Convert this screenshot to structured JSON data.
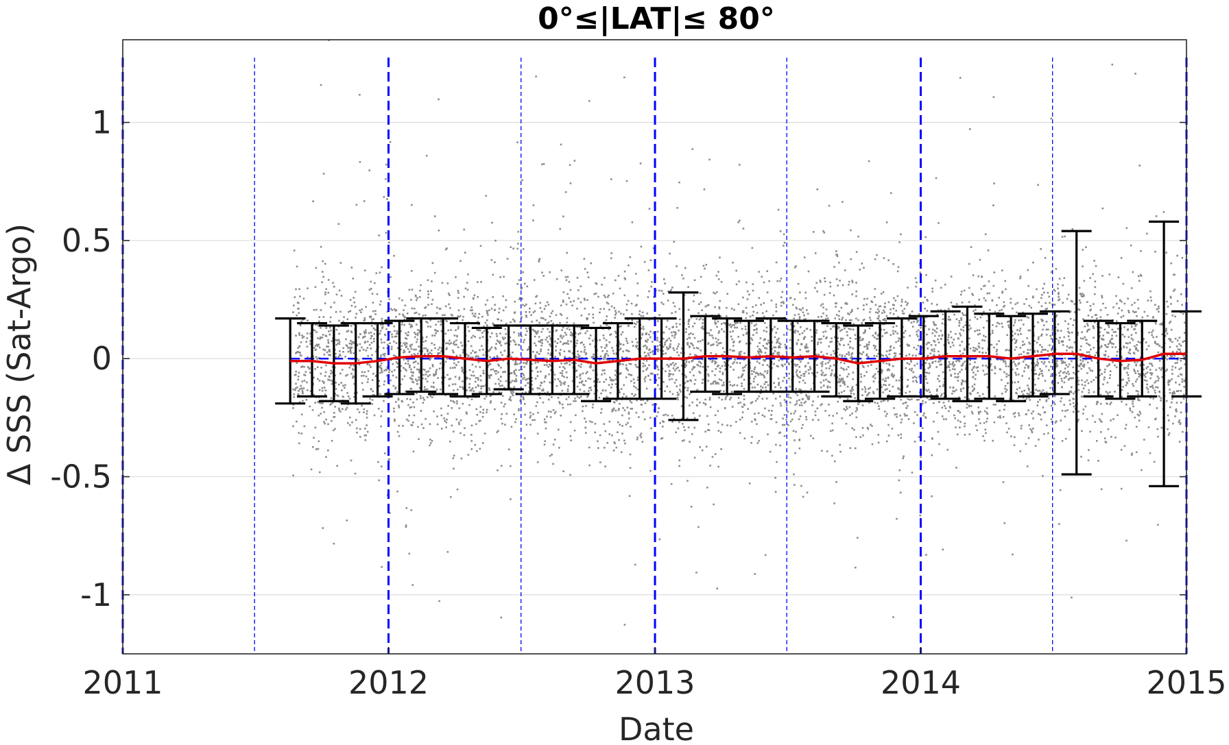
{
  "chart_data": {
    "type": "scatter",
    "title": "0°≤|LAT|≤ 80°",
    "xlabel": "Date",
    "ylabel": "Δ SSS (Sat-Argo)",
    "xlim": [
      "2011-01-01",
      "2015-01-01"
    ],
    "ylim": [
      -1.25,
      1.35
    ],
    "x_ticks": [
      "2011",
      "2012",
      "2013",
      "2014",
      "2015"
    ],
    "y_ticks": [
      {
        "value": -1,
        "label": "-1"
      },
      {
        "value": -0.5,
        "label": "-0.5"
      },
      {
        "value": 0,
        "label": "0"
      },
      {
        "value": 0.5,
        "label": "0.5"
      },
      {
        "value": 1,
        "label": "1"
      }
    ],
    "grid": "horizontal",
    "colors": {
      "scatter": "#8c8c8c",
      "mean_line": "#e00000",
      "error_bars": "#000000",
      "year_lines": "#0000ff",
      "zero_line": "#0000ff",
      "grid": "#dcdcdc"
    },
    "scatter_cloud": {
      "x_range": [
        "2011-08-23",
        "2015-01-01"
      ],
      "typical_spread": 0.17,
      "n_points_rendered": 6000
    },
    "year_markers": [
      "2011-01-01",
      "2012-01-01",
      "2013-01-01",
      "2014-01-01",
      "2015-01-01"
    ],
    "half_year_markers": [
      "2011-07-01",
      "2012-07-01",
      "2013-07-01",
      "2014-07-01"
    ],
    "mean_series": [
      {
        "date": "2011-08-19",
        "mean": -0.01,
        "low": -0.19,
        "high": 0.17
      },
      {
        "date": "2011-09-18",
        "mean": -0.01,
        "low": -0.16,
        "high": 0.15
      },
      {
        "date": "2011-10-18",
        "mean": -0.02,
        "low": -0.18,
        "high": 0.14
      },
      {
        "date": "2011-11-17",
        "mean": -0.02,
        "low": -0.19,
        "high": 0.15
      },
      {
        "date": "2011-12-17",
        "mean": -0.01,
        "low": -0.16,
        "high": 0.15
      },
      {
        "date": "2012-01-16",
        "mean": 0.005,
        "low": -0.15,
        "high": 0.16
      },
      {
        "date": "2012-02-15",
        "mean": 0.01,
        "low": -0.14,
        "high": 0.17
      },
      {
        "date": "2012-03-16",
        "mean": 0.01,
        "low": -0.15,
        "high": 0.17
      },
      {
        "date": "2012-04-15",
        "mean": 0.0,
        "low": -0.16,
        "high": 0.15
      },
      {
        "date": "2012-05-15",
        "mean": -0.01,
        "low": -0.15,
        "high": 0.13
      },
      {
        "date": "2012-06-14",
        "mean": 0.0,
        "low": -0.13,
        "high": 0.14
      },
      {
        "date": "2012-07-14",
        "mean": -0.005,
        "low": -0.15,
        "high": 0.14
      },
      {
        "date": "2012-08-13",
        "mean": -0.01,
        "low": -0.15,
        "high": 0.14
      },
      {
        "date": "2012-09-12",
        "mean": -0.005,
        "low": -0.15,
        "high": 0.14
      },
      {
        "date": "2012-10-12",
        "mean": -0.02,
        "low": -0.18,
        "high": 0.13
      },
      {
        "date": "2012-11-11",
        "mean": -0.01,
        "low": -0.17,
        "high": 0.15
      },
      {
        "date": "2012-12-11",
        "mean": 0.0,
        "low": -0.17,
        "high": 0.17
      },
      {
        "date": "2013-01-10",
        "mean": 0.0,
        "low": -0.17,
        "high": 0.17
      },
      {
        "date": "2013-02-09",
        "mean": 0.0,
        "low": -0.26,
        "high": 0.28
      },
      {
        "date": "2013-03-11",
        "mean": 0.01,
        "low": -0.14,
        "high": 0.18
      },
      {
        "date": "2013-04-10",
        "mean": 0.01,
        "low": -0.15,
        "high": 0.17
      },
      {
        "date": "2013-05-10",
        "mean": 0.005,
        "low": -0.14,
        "high": 0.16
      },
      {
        "date": "2013-06-09",
        "mean": 0.01,
        "low": -0.14,
        "high": 0.17
      },
      {
        "date": "2013-07-09",
        "mean": 0.005,
        "low": -0.14,
        "high": 0.16
      },
      {
        "date": "2013-08-08",
        "mean": 0.01,
        "low": -0.14,
        "high": 0.16
      },
      {
        "date": "2013-09-07",
        "mean": 0.0,
        "low": -0.16,
        "high": 0.15
      },
      {
        "date": "2013-10-07",
        "mean": -0.02,
        "low": -0.18,
        "high": 0.14
      },
      {
        "date": "2013-11-06",
        "mean": -0.01,
        "low": -0.17,
        "high": 0.15
      },
      {
        "date": "2013-12-06",
        "mean": 0.0,
        "low": -0.16,
        "high": 0.17
      },
      {
        "date": "2014-01-05",
        "mean": 0.0,
        "low": -0.16,
        "high": 0.18
      },
      {
        "date": "2014-02-04",
        "mean": 0.01,
        "low": -0.17,
        "high": 0.2
      },
      {
        "date": "2014-03-06",
        "mean": 0.01,
        "low": -0.18,
        "high": 0.22
      },
      {
        "date": "2014-04-05",
        "mean": 0.01,
        "low": -0.17,
        "high": 0.19
      },
      {
        "date": "2014-05-05",
        "mean": 0.0,
        "low": -0.18,
        "high": 0.18
      },
      {
        "date": "2014-06-04",
        "mean": 0.01,
        "low": -0.16,
        "high": 0.19
      },
      {
        "date": "2014-07-04",
        "mean": 0.02,
        "low": -0.15,
        "high": 0.2
      },
      {
        "date": "2014-08-03",
        "mean": 0.02,
        "low": -0.49,
        "high": 0.54
      },
      {
        "date": "2014-09-02",
        "mean": 0.0,
        "low": -0.16,
        "high": 0.16
      },
      {
        "date": "2014-10-02",
        "mean": -0.01,
        "low": -0.17,
        "high": 0.15
      },
      {
        "date": "2014-11-01",
        "mean": -0.005,
        "low": -0.16,
        "high": 0.16
      },
      {
        "date": "2014-12-01",
        "mean": 0.02,
        "low": -0.54,
        "high": 0.58
      },
      {
        "date": "2015-01-01",
        "mean": 0.02,
        "low": -0.16,
        "high": 0.2
      }
    ]
  }
}
